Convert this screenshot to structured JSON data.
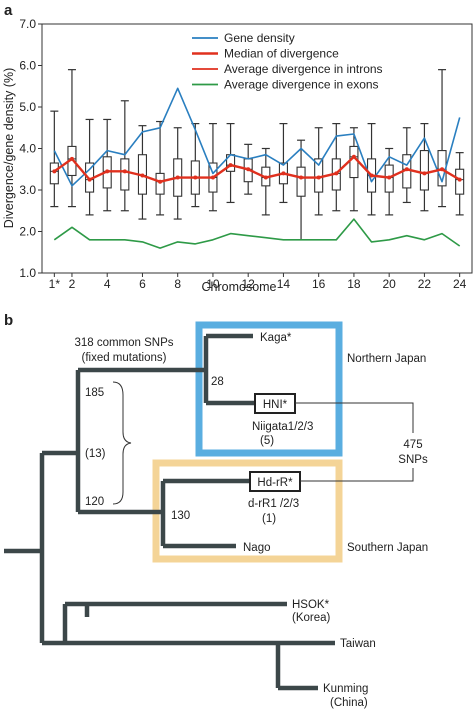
{
  "panel_a": {
    "letter": "a"
  },
  "panel_b": {
    "letter": "b"
  },
  "chart_data": {
    "type": "line",
    "xlabel": "Chromosome",
    "ylabel": "Divergence/gene density (%)",
    "ylim": [
      1.0,
      7.0
    ],
    "yticks": [
      "1.0",
      "2.0",
      "3.0",
      "4.0",
      "5.0",
      "6.0",
      "7.0"
    ],
    "x": [
      1,
      2,
      3,
      4,
      5,
      6,
      7,
      8,
      9,
      10,
      11,
      12,
      13,
      14,
      15,
      16,
      17,
      18,
      19,
      20,
      21,
      22,
      23,
      24
    ],
    "xtick_labels": [
      "1*",
      "2",
      "4",
      "6",
      "8",
      "10",
      "12",
      "14",
      "16",
      "18",
      "20",
      "22",
      "24"
    ],
    "xtick_positions": [
      1,
      2,
      4,
      6,
      8,
      10,
      12,
      14,
      16,
      18,
      20,
      22,
      24
    ],
    "legend_position": "top-right",
    "grid": false,
    "series": [
      {
        "name": "Gene density",
        "color": "#2a7fc0",
        "values": [
          3.95,
          3.1,
          3.5,
          3.95,
          3.85,
          4.4,
          4.5,
          5.45,
          4.45,
          3.4,
          3.85,
          3.75,
          3.85,
          3.6,
          4.0,
          3.6,
          4.3,
          4.35,
          3.2,
          3.8,
          3.6,
          4.25,
          3.2,
          4.75
        ]
      },
      {
        "name": "Median of divergence",
        "color": "#e0301e",
        "values": [
          3.45,
          3.75,
          3.25,
          3.45,
          3.45,
          3.35,
          3.2,
          3.3,
          3.3,
          3.3,
          3.6,
          3.5,
          3.3,
          3.4,
          3.3,
          3.3,
          3.4,
          3.8,
          3.35,
          3.3,
          3.5,
          3.4,
          3.5,
          3.25
        ]
      },
      {
        "name": "Average divergence in introns",
        "color": "#e0301e",
        "values": [
          3.45,
          3.75,
          3.25,
          3.45,
          3.45,
          3.35,
          3.2,
          3.3,
          3.3,
          3.3,
          3.6,
          3.5,
          3.3,
          3.4,
          3.3,
          3.3,
          3.4,
          3.8,
          3.35,
          3.3,
          3.5,
          3.4,
          3.5,
          3.25
        ]
      },
      {
        "name": "Average divergence in exons",
        "color": "#2e9a47",
        "values": [
          1.8,
          2.1,
          1.8,
          1.8,
          1.8,
          1.75,
          1.6,
          1.75,
          1.7,
          1.8,
          1.95,
          1.9,
          1.85,
          1.8,
          1.8,
          1.8,
          1.8,
          2.3,
          1.75,
          1.8,
          1.9,
          1.8,
          1.95,
          1.65
        ]
      }
    ],
    "boxes": [
      {
        "whisker_low": 2.6,
        "q1": 3.15,
        "median": 3.45,
        "q3": 3.65,
        "whisker_high": 4.9
      },
      {
        "whisker_low": 2.6,
        "q1": 3.35,
        "median": 3.75,
        "q3": 4.05,
        "whisker_high": 5.9
      },
      {
        "whisker_low": 2.4,
        "q1": 2.95,
        "median": 3.25,
        "q3": 3.65,
        "whisker_high": 4.7
      },
      {
        "whisker_low": 2.5,
        "q1": 3.05,
        "median": 3.45,
        "q3": 3.8,
        "whisker_high": 4.7
      },
      {
        "whisker_low": 2.5,
        "q1": 3.0,
        "median": 3.45,
        "q3": 3.75,
        "whisker_high": 5.15
      },
      {
        "whisker_low": 2.3,
        "q1": 2.9,
        "median": 3.35,
        "q3": 3.85,
        "whisker_high": 4.55
      },
      {
        "whisker_low": 2.4,
        "q1": 2.9,
        "median": 3.2,
        "q3": 3.4,
        "whisker_high": 4.65
      },
      {
        "whisker_low": 2.3,
        "q1": 2.85,
        "median": 3.3,
        "q3": 3.75,
        "whisker_high": 4.5
      },
      {
        "whisker_low": 2.6,
        "q1": 2.9,
        "median": 3.3,
        "q3": 3.7,
        "whisker_high": 4.6
      },
      {
        "whisker_low": 2.5,
        "q1": 2.95,
        "median": 3.3,
        "q3": 3.65,
        "whisker_high": 4.6
      },
      {
        "whisker_low": 2.7,
        "q1": 3.45,
        "median": 3.6,
        "q3": 3.85,
        "whisker_high": 4.6
      },
      {
        "whisker_low": 2.9,
        "q1": 3.2,
        "median": 3.5,
        "q3": 3.75,
        "whisker_high": 4.1
      },
      {
        "whisker_low": 2.4,
        "q1": 3.1,
        "median": 3.3,
        "q3": 3.55,
        "whisker_high": 4.0
      },
      {
        "whisker_low": 2.7,
        "q1": 3.15,
        "median": 3.4,
        "q3": 3.65,
        "whisker_high": 4.6
      },
      {
        "whisker_low": 1.8,
        "q1": 2.85,
        "median": 3.3,
        "q3": 3.55,
        "whisker_high": 4.2
      },
      {
        "whisker_low": 2.4,
        "q1": 2.95,
        "median": 3.3,
        "q3": 3.75,
        "whisker_high": 4.5
      },
      {
        "whisker_low": 2.5,
        "q1": 3.0,
        "median": 3.4,
        "q3": 3.75,
        "whisker_high": 4.6
      },
      {
        "whisker_low": 2.5,
        "q1": 3.3,
        "median": 3.8,
        "q3": 4.05,
        "whisker_high": 4.5
      },
      {
        "whisker_low": 2.4,
        "q1": 2.95,
        "median": 3.35,
        "q3": 3.75,
        "whisker_high": 4.6
      },
      {
        "whisker_low": 2.4,
        "q1": 2.95,
        "median": 3.3,
        "q3": 3.6,
        "whisker_high": 4.0
      },
      {
        "whisker_low": 2.7,
        "q1": 3.05,
        "median": 3.5,
        "q3": 3.85,
        "whisker_high": 4.5
      },
      {
        "whisker_low": 2.5,
        "q1": 3.0,
        "median": 3.4,
        "q3": 3.95,
        "whisker_high": 4.6
      },
      {
        "whisker_low": 2.6,
        "q1": 3.1,
        "median": 3.5,
        "q3": 3.95,
        "whisker_high": 5.9
      },
      {
        "whisker_low": 2.4,
        "q1": 2.9,
        "median": 3.25,
        "q3": 3.5,
        "whisker_high": 3.9
      }
    ]
  },
  "tree": {
    "common_snps_label": [
      "318 common SNPs",
      "(fixed mutations)"
    ],
    "node_numbers": {
      "n185": "185",
      "n13": "(13)",
      "n120": "120",
      "n28": "28",
      "n130": "130"
    },
    "leaves": {
      "kaga": "Kaga*",
      "hni": "HNI*",
      "niigata": [
        "Niigata1/2/3",
        "(5)"
      ],
      "hdrr": "Hd-rR*",
      "drr": [
        "d-rR1 /2/3",
        "(1)"
      ],
      "nago": "Nago",
      "hsok": [
        "HSOK*",
        "(Korea)"
      ],
      "taiwan": "Taiwan",
      "kunming": [
        "Kunming",
        "(China)"
      ]
    },
    "regions": {
      "north": "Northern Japan",
      "south": "Southern Japan"
    },
    "snp_count_label": [
      "475",
      "SNPs"
    ],
    "colors": {
      "north_box": "#5aaee0",
      "south_box": "#f4d497",
      "branch": "#3c4749"
    }
  }
}
